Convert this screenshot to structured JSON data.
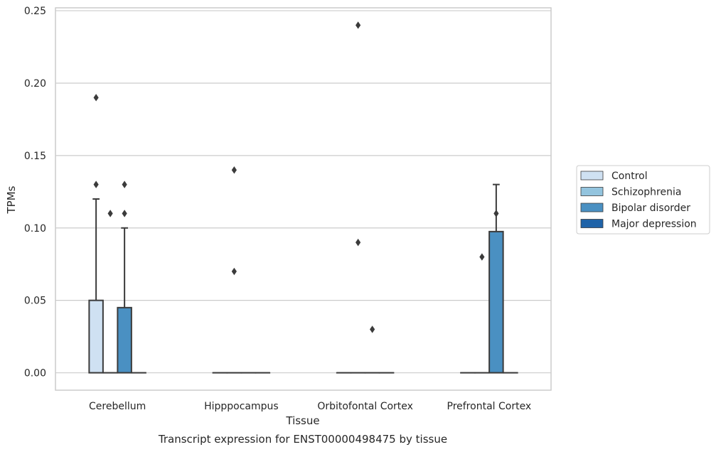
{
  "chart_data": {
    "type": "boxplot",
    "caption": "Transcript expression for ENST00000498475 by tissue",
    "xlabel": "Tissue",
    "ylabel": "TPMs",
    "ylim": [
      -0.012,
      0.252
    ],
    "yticks": [
      0.0,
      0.05,
      0.1,
      0.15,
      0.2,
      0.25
    ],
    "ytick_labels": [
      "0.00",
      "0.05",
      "0.10",
      "0.15",
      "0.20",
      "0.25"
    ],
    "grid": "horizontal",
    "legend_position": "right",
    "categories": [
      "Cerebellum",
      "Hipppocampus",
      "Orbitofontal Cortex",
      "Prefrontal Cortex"
    ],
    "series": [
      {
        "name": "Control",
        "color": "#cfe1f2",
        "boxes": [
          {
            "q1": 0.0,
            "median": 0.0,
            "q3": 0.05,
            "whislo": 0.0,
            "whishi": 0.12,
            "fliers": [
              0.13,
              0.19
            ]
          },
          {
            "q1": 0.0,
            "median": 0.0,
            "q3": 0.0,
            "whislo": 0.0,
            "whishi": 0.0,
            "fliers": []
          },
          {
            "q1": 0.0,
            "median": 0.0,
            "q3": 0.0,
            "whislo": 0.0,
            "whishi": 0.0,
            "fliers": []
          },
          {
            "q1": 0.0,
            "median": 0.0,
            "q3": 0.0,
            "whislo": 0.0,
            "whishi": 0.0,
            "fliers": []
          }
        ]
      },
      {
        "name": "Schizophrenia",
        "color": "#93c4de",
        "boxes": [
          {
            "q1": 0.0,
            "median": 0.0,
            "q3": 0.0,
            "whislo": 0.0,
            "whishi": 0.0,
            "fliers": [
              0.11
            ]
          },
          {
            "q1": 0.0,
            "median": 0.0,
            "q3": 0.0,
            "whislo": 0.0,
            "whishi": 0.0,
            "fliers": [
              0.07,
              0.14
            ]
          },
          {
            "q1": 0.0,
            "median": 0.0,
            "q3": 0.0,
            "whislo": 0.0,
            "whishi": 0.0,
            "fliers": [
              0.09,
              0.24
            ]
          },
          {
            "q1": 0.0,
            "median": 0.0,
            "q3": 0.0,
            "whislo": 0.0,
            "whishi": 0.0,
            "fliers": [
              0.08
            ]
          }
        ]
      },
      {
        "name": "Bipolar disorder",
        "color": "#4a90c2",
        "boxes": [
          {
            "q1": 0.0,
            "median": 0.0,
            "q3": 0.045,
            "whislo": 0.0,
            "whishi": 0.1,
            "fliers": [
              0.11,
              0.13
            ]
          },
          {
            "q1": 0.0,
            "median": 0.0,
            "q3": 0.0,
            "whislo": 0.0,
            "whishi": 0.0,
            "fliers": []
          },
          {
            "q1": 0.0,
            "median": 0.0,
            "q3": 0.0,
            "whislo": 0.0,
            "whishi": 0.0,
            "fliers": [
              0.03
            ]
          },
          {
            "q1": 0.0,
            "median": 0.0,
            "q3": 0.0975,
            "whislo": 0.0,
            "whishi": 0.13,
            "fliers": [
              0.11
            ]
          }
        ]
      },
      {
        "name": "Major depression",
        "color": "#1f63a8",
        "boxes": [
          {
            "q1": 0.0,
            "median": 0.0,
            "q3": 0.0,
            "whislo": 0.0,
            "whishi": 0.0,
            "fliers": []
          },
          {
            "q1": 0.0,
            "median": 0.0,
            "q3": 0.0,
            "whislo": 0.0,
            "whishi": 0.0,
            "fliers": []
          },
          {
            "q1": 0.0,
            "median": 0.0,
            "q3": 0.0,
            "whislo": 0.0,
            "whishi": 0.0,
            "fliers": []
          },
          {
            "q1": 0.0,
            "median": 0.0,
            "q3": 0.0,
            "whislo": 0.0,
            "whishi": 0.0,
            "fliers": []
          }
        ]
      }
    ],
    "colors": {
      "grid": "#cccccc",
      "frame": "#cccccc",
      "box_edge": "#3b3b3b",
      "flier": "#3b3b3b"
    }
  }
}
